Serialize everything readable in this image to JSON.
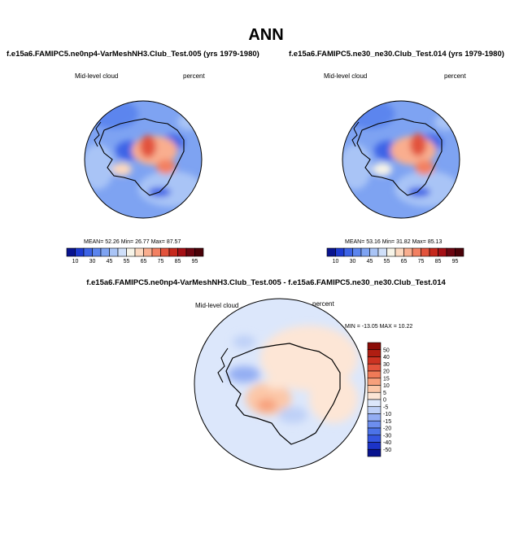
{
  "figure": {
    "title": "ANN"
  },
  "colors": {
    "blue_scale": [
      "#08138f",
      "#1d3ad0",
      "#3c63e6",
      "#5b85ee",
      "#7ea3f2",
      "#a9c4f6",
      "#cfdff9",
      "#f7f4e8",
      "#fcd8bf",
      "#f9ae8f",
      "#f28062",
      "#e2533c",
      "#c6281c",
      "#a50f15",
      "#6b0510"
    ],
    "diff_scale": [
      "#08138f",
      "#1c33c7",
      "#3556e0",
      "#4c73e8",
      "#6d8eee",
      "#93adf3",
      "#bed0f7",
      "#dce7fb",
      "#fde6d6",
      "#fcc7a8",
      "#f7a07c",
      "#f07a57",
      "#e2533c",
      "#cc3322",
      "#b01e12",
      "#8b0c07"
    ]
  },
  "chart_data": [
    {
      "type": "heatmap",
      "projection": "polar-stereographic (south)",
      "title": "f.e15a6.FAMIPC5.ne0np4-VarMeshNH3.Club_Test.005 (yrs 1979-1980)",
      "variable": "Mid-level cloud",
      "units": "percent",
      "stats": {
        "mean_label": "MEAN=",
        "mean": "52.26",
        "min_label": "Min=",
        "min": "26.77",
        "max_label": "Max=",
        "max": "87.57"
      },
      "colorbar_labels": [
        "10",
        "30",
        "45",
        "55",
        "65",
        "75",
        "85",
        "95"
      ],
      "colorbar_levels": [
        5,
        10,
        20,
        30,
        35,
        40,
        45,
        50,
        55,
        60,
        65,
        70,
        75,
        80,
        85,
        90,
        95
      ]
    },
    {
      "type": "heatmap",
      "projection": "polar-stereographic (south)",
      "title": "f.e15a6.FAMIPC5.ne30_ne30.Club_Test.014 (yrs 1979-1980)",
      "variable": "Mid-level cloud",
      "units": "percent",
      "stats": {
        "mean_label": "MEAN=",
        "mean": "53.16",
        "min_label": "Min=",
        "min": "31.82",
        "max_label": "Max=",
        "max": "85.13"
      },
      "colorbar_labels": [
        "10",
        "30",
        "45",
        "55",
        "65",
        "75",
        "85",
        "95"
      ],
      "colorbar_levels": [
        5,
        10,
        20,
        30,
        35,
        40,
        45,
        50,
        55,
        60,
        65,
        70,
        75,
        80,
        85,
        90,
        95
      ]
    },
    {
      "type": "heatmap",
      "projection": "polar-stereographic (south)",
      "title": "f.e15a6.FAMIPC5.ne0np4-VarMeshNH3.Club_Test.005 - f.e15a6.FAMIPC5.ne30_ne30.Club_Test.014",
      "variable": "Mid-level cloud",
      "units": "percent",
      "stats_text": "MIN = -13.05 MAX =  10.22",
      "colorbar_labels": [
        "50",
        "40",
        "30",
        "20",
        "15",
        "10",
        "5",
        "0",
        "-5",
        "-10",
        "-15",
        "-20",
        "-30",
        "-40",
        "-50"
      ]
    }
  ]
}
